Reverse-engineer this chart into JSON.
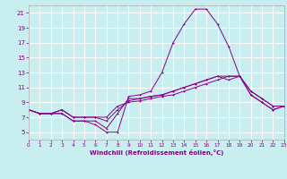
{
  "xlabel": "Windchill (Refroidissement éolien,°C)",
  "background_color": "#c8eef0",
  "grid_color": "#ffffff",
  "line_color": "#880088",
  "spine_color": "#aaaaaa",
  "xmin": 0,
  "xmax": 23,
  "ymin": 4,
  "ymax": 22,
  "yticks": [
    5,
    7,
    9,
    11,
    13,
    15,
    17,
    19,
    21
  ],
  "xticks": [
    0,
    1,
    2,
    3,
    4,
    5,
    6,
    7,
    8,
    9,
    10,
    11,
    12,
    13,
    14,
    15,
    16,
    17,
    18,
    19,
    20,
    21,
    22,
    23
  ],
  "series": [
    [
      8.0,
      7.5,
      7.5,
      7.5,
      6.5,
      6.5,
      6.0,
      5.0,
      5.0,
      9.8,
      10.0,
      10.5,
      13.0,
      17.0,
      19.5,
      21.5,
      21.5,
      19.5,
      16.5,
      12.5,
      10.0,
      9.0,
      8.0,
      8.5
    ],
    [
      8.0,
      7.5,
      7.5,
      7.5,
      6.5,
      6.5,
      6.5,
      5.5,
      7.5,
      9.5,
      9.5,
      9.8,
      10.0,
      10.5,
      11.0,
      11.5,
      12.0,
      12.5,
      12.0,
      12.5,
      10.0,
      9.0,
      8.0,
      8.5
    ],
    [
      8.0,
      7.5,
      7.5,
      8.0,
      7.0,
      7.0,
      7.0,
      6.5,
      8.0,
      9.2,
      9.5,
      9.8,
      10.0,
      10.5,
      11.0,
      11.5,
      12.0,
      12.5,
      12.5,
      12.5,
      10.5,
      9.5,
      8.5,
      8.5
    ],
    [
      8.0,
      7.5,
      7.5,
      8.0,
      7.0,
      7.0,
      7.0,
      7.0,
      8.5,
      9.0,
      9.2,
      9.5,
      9.8,
      10.0,
      10.5,
      11.0,
      11.5,
      12.0,
      12.5,
      12.5,
      10.5,
      9.5,
      8.5,
      8.5
    ]
  ]
}
